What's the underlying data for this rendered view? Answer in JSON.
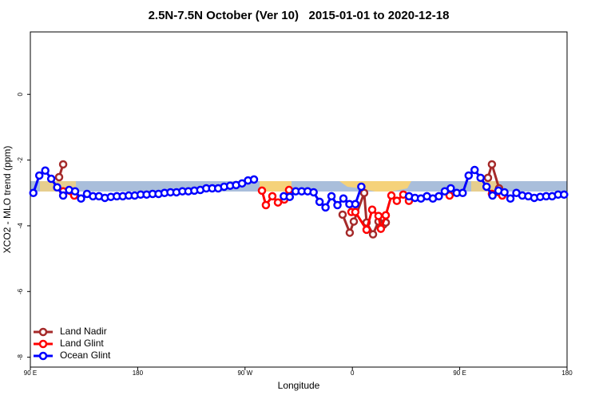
{
  "chart_data": {
    "type": "line",
    "title": "2.5N-7.5N October (Ver 10)   2015-01-01 to 2020-12-18",
    "xlabel": "Longitude",
    "ylabel": "XCO2 - MLO trend (ppm)",
    "xlim": [
      90,
      540
    ],
    "ylim": [
      -8.3,
      1.9
    ],
    "xticks": [
      {
        "value": 90,
        "label": "90 E"
      },
      180,
      {
        "value": 270,
        "label": "90 W"
      },
      {
        "value": 360,
        "label": "0"
      },
      {
        "value": 450,
        "label": "90 E"
      },
      {
        "value": 540,
        "label": "180"
      }
    ],
    "yticks": [
      0,
      -2,
      -4,
      -6,
      -8
    ],
    "legend": "bottom-left",
    "series": [
      {
        "name": "Land Nadir",
        "color": "#a52a2a",
        "x": [
          114.1,
          117.5,
          200,
          351.8,
          357.8,
          361.2,
          369.9,
          371.9,
          377.3,
          381.9,
          385.9,
          388,
          420,
          473.7,
          477,
          483
        ],
        "values": [
          -2.52,
          -2.13,
          null,
          -3.66,
          -4.21,
          -3.87,
          -3.0,
          -3.9,
          -4.26,
          -3.87,
          -3.97,
          -3.9,
          null,
          -2.54,
          -2.13,
          -2.86
        ]
      },
      {
        "name": "Land Glint",
        "color": "#ff0000",
        "x": [
          117.5,
          126.8,
          200,
          284.2,
          287.5,
          292.9,
          297.6,
          302.9,
          306.9,
          330,
          359.2,
          362.5,
          371.9,
          376.6,
          381.9,
          383.9,
          388,
          392.7,
          397.3,
          402.7,
          407.4,
          420,
          441.5,
          460,
          477,
          485.7
        ],
        "values": [
          -2.95,
          -3.08,
          null,
          -2.93,
          -3.37,
          -3.1,
          -3.29,
          -3.2,
          -2.91,
          null,
          -3.58,
          -3.58,
          -4.12,
          -3.51,
          -3.7,
          -4.09,
          -3.68,
          -3.08,
          -3.24,
          -3.05,
          -3.24,
          null,
          -3.08,
          null,
          -3.03,
          -3.08
        ]
      },
      {
        "name": "Ocean Glint",
        "color": "#0000ff",
        "x": [
          92.5,
          97.5,
          102.5,
          107.5,
          112.5,
          117.5,
          122.5,
          127.5,
          132.5,
          137.5,
          142.5,
          147.5,
          152.5,
          157.5,
          162.5,
          167.5,
          172.5,
          177.5,
          182.5,
          187.5,
          192.5,
          197.5,
          202.5,
          207.5,
          212.5,
          217.5,
          222.5,
          227.5,
          232.5,
          237.5,
          242.5,
          247.5,
          252.5,
          257.5,
          262.5,
          267.5,
          272.5,
          277.5,
          290,
          302.5,
          307.5,
          312.5,
          317.5,
          322.5,
          327.5,
          332.5,
          337.5,
          342.5,
          347.5,
          352.5,
          357.5,
          362.5,
          367.5,
          390,
          407.5,
          412.5,
          417.5,
          422.5,
          427.5,
          432.5,
          437.5,
          442.5,
          447.5,
          452.5,
          457.5,
          462.5,
          467.5,
          472.5,
          477.5,
          482.5,
          487.5,
          492.5,
          497.5,
          502.5,
          507.5,
          512.5,
          517.5,
          522.5,
          527.5,
          532.5,
          537.5
        ],
        "values": [
          -3.0,
          -2.47,
          -2.32,
          -2.57,
          -2.83,
          -3.08,
          -2.91,
          -2.95,
          -3.17,
          -3.03,
          -3.1,
          -3.1,
          -3.15,
          -3.12,
          -3.1,
          -3.1,
          -3.08,
          -3.08,
          -3.05,
          -3.05,
          -3.03,
          -3.03,
          -3.0,
          -2.98,
          -2.98,
          -2.95,
          -2.95,
          -2.93,
          -2.91,
          -2.86,
          -2.86,
          -2.86,
          -2.81,
          -2.78,
          -2.76,
          -2.71,
          -2.62,
          -2.59,
          null,
          -3.1,
          -3.12,
          -2.95,
          -2.95,
          -2.95,
          -2.98,
          -3.27,
          -3.44,
          -3.1,
          -3.37,
          -3.17,
          -3.34,
          -3.34,
          -2.81,
          null,
          -3.1,
          -3.15,
          -3.17,
          -3.1,
          -3.17,
          -3.1,
          -2.95,
          -2.86,
          -3.0,
          -3.0,
          -2.47,
          -2.3,
          -2.54,
          -2.81,
          -3.08,
          -2.93,
          -2.98,
          -3.17,
          -3.0,
          -3.08,
          -3.1,
          -3.15,
          -3.12,
          -3.1,
          -3.1,
          -3.05,
          -3.05
        ]
      }
    ]
  }
}
